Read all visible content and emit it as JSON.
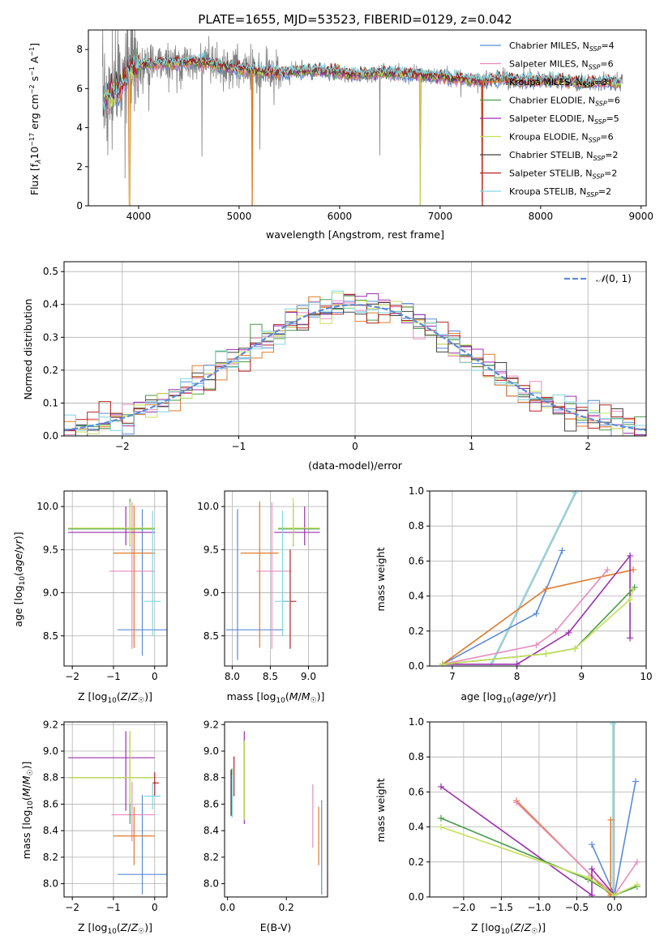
{
  "figure": {
    "title": "PLATE=1655, MJD=53523, FIBERID=0129, z=0.042"
  },
  "models": [
    {
      "name": "Chabrier MILES, N$_{SSP}$=4",
      "label": "Chabrier MILES, N",
      "sub": "SSP",
      "tail": "=4",
      "color": "#5b8bd8"
    },
    {
      "name": "Salpeter MILES, N$_{SSP}$=6",
      "label": "Salpeter MILES, N",
      "sub": "SSP",
      "tail": "=6",
      "color": "#e98bbd"
    },
    {
      "name": "Kroupa MILES, N$_{SSP}$=3",
      "label": "Kroupa MILES, N",
      "sub": "SSP",
      "tail": "=3",
      "color": "#e07a2a"
    },
    {
      "name": "Chabrier ELODIE, N$_{SSP}$=6",
      "label": "Chabrier ELODIE, N",
      "sub": "SSP",
      "tail": "=6",
      "color": "#4a9a4a"
    },
    {
      "name": "Salpeter ELODIE, N$_{SSP}$=5",
      "label": "Salpeter ELODIE, N",
      "sub": "SSP",
      "tail": "=5",
      "color": "#9b2fae"
    },
    {
      "name": "Kroupa ELODIE, N$_{SSP}$=6",
      "label": "Kroupa ELODIE, N",
      "sub": "SSP",
      "tail": "=6",
      "color": "#c5e05a"
    },
    {
      "name": "Chabrier STELIB, N$_{SSP}$=2",
      "label": "Chabrier STELIB, N",
      "sub": "SSP",
      "tail": "=2",
      "color": "#444444"
    },
    {
      "name": "Salpeter STELIB, N$_{SSP}$=2",
      "label": "Salpeter STELIB, N",
      "sub": "SSP",
      "tail": "=2",
      "color": "#b22222"
    },
    {
      "name": "Kroupa STELIB, N$_{SSP}$=2",
      "label": "Kroupa STELIB, N",
      "sub": "SSP",
      "tail": "=2",
      "color": "#7fd6e0"
    }
  ],
  "chart_data": [
    {
      "id": "spectrum",
      "type": "line",
      "xlabel": "wavelength [Angstrom, rest frame]",
      "ylabel": "Flux [f_λ 10^-17 erg cm^-2 s^-1 A^-1]",
      "xlim": [
        3500,
        9050
      ],
      "ylim": [
        0,
        9
      ],
      "xticks": [
        4000,
        5000,
        6000,
        7000,
        8000,
        9000
      ],
      "yticks": [
        0,
        2,
        4,
        6,
        8
      ],
      "legend": "upper-right",
      "grid": false,
      "data_color": "#808080",
      "continuum": {
        "x": [
          3650,
          3700,
          3800,
          3900,
          4000,
          4200,
          4400,
          4600,
          4800,
          5000,
          5200,
          5400,
          5600,
          5800,
          6000,
          6200,
          6400,
          6600,
          6800,
          7000,
          7200,
          7400,
          7600,
          7800,
          8000,
          8200,
          8400,
          8600,
          8800
        ],
        "y": [
          5.5,
          5.6,
          5.9,
          6.8,
          7.2,
          7.3,
          7.3,
          7.4,
          7.2,
          7.0,
          6.9,
          6.8,
          6.9,
          6.9,
          6.8,
          6.7,
          6.8,
          6.8,
          6.7,
          6.6,
          6.5,
          6.4,
          6.5,
          6.4,
          6.4,
          6.4,
          6.3,
          6.3,
          6.3
        ]
      },
      "dips": [
        {
          "x": 3910,
          "y": 0.0
        },
        {
          "x": 5130,
          "y": 0.0
        },
        {
          "x": 6800,
          "y": 0.0
        },
        {
          "x": 7420,
          "y": 0.2
        }
      ]
    },
    {
      "id": "residuals",
      "type": "histogram",
      "xlabel": "(data-model)/error",
      "ylabel": "Normed distribution",
      "xlim": [
        -2.5,
        2.5
      ],
      "ylim": [
        0,
        0.53
      ],
      "xticks": [
        -2,
        -1,
        0,
        1,
        2
      ],
      "yticks": [
        0.0,
        0.1,
        0.2,
        0.3,
        0.4,
        0.5
      ],
      "grid": true,
      "legend": "upper-right",
      "reference": {
        "label": "N(0,1)",
        "color": "#5b8bd8"
      },
      "bin_width": 0.1
    },
    {
      "id": "age_vs_Z",
      "type": "errorbar",
      "xlabel": "Z [log10(Z/Z_sun)]",
      "ylabel": "age  [log10(age/yr)]",
      "xlim": [
        -2.2,
        0.3
      ],
      "ylim": [
        8.15,
        10.18
      ],
      "xticks": [
        -2,
        -1,
        0
      ],
      "yticks": [
        8.5,
        9.0,
        9.5,
        10.0
      ],
      "grid": true,
      "points": [
        {
          "m": 0,
          "x": -0.3,
          "xerr": [
            0.6,
            0.6
          ],
          "y": 8.57,
          "yerr": [
            0.3,
            1.4
          ]
        },
        {
          "m": 1,
          "x": -0.55,
          "xerr": [
            0.55,
            0.55
          ],
          "y": 9.25,
          "yerr": [
            0.9,
            0.8
          ]
        },
        {
          "m": 2,
          "x": -0.5,
          "xerr": [
            0.5,
            0.5
          ],
          "y": 9.46,
          "yerr": [
            1.1,
            0.55
          ]
        },
        {
          "m": 3,
          "x": -0.6,
          "xerr": [
            1.5,
            0.6
          ],
          "y": 9.74,
          "yerr": [
            0.2,
            0.35
          ]
        },
        {
          "m": 4,
          "x": -0.7,
          "xerr": [
            1.4,
            0.7
          ],
          "y": 9.7,
          "yerr": [
            0.15,
            0.3
          ]
        },
        {
          "m": 5,
          "x": -0.6,
          "xerr": [
            1.5,
            0.6
          ],
          "y": 9.75,
          "yerr": [
            0.2,
            0.3
          ]
        },
        {
          "m": 8,
          "x": -0.05,
          "xerr": [
            0.2,
            0.2
          ],
          "y": 8.9,
          "yerr": [
            0.4,
            1.05
          ]
        }
      ]
    },
    {
      "id": "age_vs_mass",
      "type": "errorbar",
      "xlabel": "mass [log10(M/M_sun)]",
      "ylabel": "",
      "xlim": [
        7.9,
        9.25
      ],
      "ylim": [
        8.15,
        10.18
      ],
      "xticks": [
        8.0,
        8.5,
        9.0
      ],
      "yticks": [
        8.5,
        9.0,
        9.5,
        10.0
      ],
      "grid": true,
      "points": [
        {
          "m": 0,
          "x": 8.07,
          "xerr": [
            0.15,
            0.6
          ],
          "y": 8.57,
          "yerr": [
            0.35,
            1.4
          ]
        },
        {
          "m": 1,
          "x": 8.52,
          "xerr": [
            0.2,
            0.25
          ],
          "y": 9.25,
          "yerr": [
            0.9,
            0.8
          ]
        },
        {
          "m": 2,
          "x": 8.36,
          "xerr": [
            0.25,
            0.25
          ],
          "y": 9.46,
          "yerr": [
            1.1,
            0.6
          ]
        },
        {
          "m": 3,
          "x": 8.8,
          "xerr": [
            0.2,
            0.35
          ],
          "y": 9.74,
          "yerr": [
            0.2,
            0.3
          ]
        },
        {
          "m": 4,
          "x": 8.95,
          "xerr": [
            0.4,
            0.2
          ],
          "y": 9.7,
          "yerr": [
            0.15,
            0.3
          ]
        },
        {
          "m": 5,
          "x": 8.8,
          "xerr": [
            0.2,
            0.35
          ],
          "y": 9.75,
          "yerr": [
            0.2,
            0.35
          ]
        },
        {
          "m": 7,
          "x": 8.76,
          "xerr": [
            0.1,
            0.08
          ],
          "y": 8.9,
          "yerr": [
            0.55,
            0.6
          ]
        },
        {
          "m": 8,
          "x": 8.66,
          "xerr": [
            0.1,
            0.1
          ],
          "y": 8.9,
          "yerr": [
            0.4,
            1.05
          ]
        }
      ]
    },
    {
      "id": "weight_vs_age",
      "type": "line",
      "xlabel": "age  [log10(age/yr)]",
      "ylabel": "mass weight",
      "xlim": [
        6.65,
        10
      ],
      "ylim": [
        0,
        1
      ],
      "xticks": [
        7,
        8,
        9,
        10
      ],
      "yticks": [
        0.0,
        0.2,
        0.4,
        0.6,
        0.8,
        1.0
      ],
      "grid": true,
      "series": [
        {
          "m": 8,
          "x": [
            7.6,
            8.9
          ],
          "y": [
            0.01,
            0.99
          ]
        },
        {
          "m": 0,
          "x": [
            6.85,
            8.3,
            8.7
          ],
          "y": [
            0.01,
            0.3,
            0.66
          ]
        },
        {
          "m": 2,
          "x": [
            6.85,
            8.45,
            9.8
          ],
          "y": [
            0.01,
            0.44,
            0.55
          ]
        },
        {
          "m": 1,
          "x": [
            6.85,
            8.3,
            8.6,
            9.4
          ],
          "y": [
            0.01,
            0.12,
            0.2,
            0.55
          ]
        },
        {
          "m": 4,
          "x": [
            6.85,
            8.0,
            8.8,
            9.75,
            9.75
          ],
          "y": [
            0.01,
            0.01,
            0.19,
            0.63,
            0.16
          ]
        },
        {
          "m": 3,
          "x": [
            6.85,
            8.45,
            8.9,
            9.82
          ],
          "y": [
            0.01,
            0.07,
            0.1,
            0.45
          ]
        },
        {
          "m": 5,
          "x": [
            6.85,
            8.45,
            8.9,
            9.75,
            9.8
          ],
          "y": [
            0.01,
            0.07,
            0.1,
            0.38,
            0.44
          ]
        }
      ]
    },
    {
      "id": "mass_vs_Z",
      "type": "errorbar",
      "xlabel": "Z [log10(Z/Z_sun)]",
      "ylabel": "mass [log10(M/M_sun)]",
      "xlim": [
        -2.2,
        0.3
      ],
      "ylim": [
        7.9,
        9.22
      ],
      "xticks": [
        -2,
        -1,
        0
      ],
      "yticks": [
        8.0,
        8.2,
        8.4,
        8.6,
        8.8,
        9.0,
        9.2
      ],
      "grid": true,
      "points": [
        {
          "m": 0,
          "x": -0.3,
          "xerr": [
            0.6,
            0.6
          ],
          "y": 8.07,
          "yerr": [
            0.15,
            0.6
          ]
        },
        {
          "m": 1,
          "x": -0.55,
          "xerr": [
            0.5,
            0.55
          ],
          "y": 8.52,
          "yerr": [
            0.2,
            0.25
          ]
        },
        {
          "m": 2,
          "x": -0.5,
          "xerr": [
            0.5,
            0.5
          ],
          "y": 8.36,
          "yerr": [
            0.22,
            0.22
          ]
        },
        {
          "m": 3,
          "x": -0.6,
          "xerr": [
            1.5,
            0.6
          ],
          "y": 8.8,
          "yerr": [
            0.35,
            0.35
          ]
        },
        {
          "m": 4,
          "x": -0.7,
          "xerr": [
            1.4,
            0.7
          ],
          "y": 8.95,
          "yerr": [
            0.4,
            0.2
          ]
        },
        {
          "m": 5,
          "x": -0.6,
          "xerr": [
            1.5,
            0.6
          ],
          "y": 8.8,
          "yerr": [
            0.2,
            0.35
          ]
        },
        {
          "m": 7,
          "x": 0.0,
          "xerr": [
            0.05,
            0.1
          ],
          "y": 8.76,
          "yerr": [
            0.1,
            0.08
          ]
        },
        {
          "m": 8,
          "x": -0.05,
          "xerr": [
            0.2,
            0.2
          ],
          "y": 8.66,
          "yerr": [
            0.1,
            0.1
          ]
        }
      ]
    },
    {
      "id": "mass_vs_ebv",
      "type": "errorbar",
      "xlabel": "E(B-V)",
      "ylabel": "",
      "xlim": [
        -0.01,
        0.34
      ],
      "ylim": [
        7.9,
        9.22
      ],
      "xticks": [
        0.0,
        0.2
      ],
      "yticks": [
        8.0,
        8.2,
        8.4,
        8.6,
        8.8,
        9.0,
        9.2
      ],
      "grid": false,
      "points": [
        {
          "m": 0,
          "x": 0.32,
          "y": 8.07,
          "yerr": [
            0.15,
            0.56
          ]
        },
        {
          "m": 1,
          "x": 0.29,
          "y": 8.52,
          "yerr": [
            0.25,
            0.23
          ]
        },
        {
          "m": 2,
          "x": 0.31,
          "y": 8.36,
          "yerr": [
            0.22,
            0.22
          ]
        },
        {
          "m": 3,
          "x": 0.015,
          "y": 8.7,
          "yerr": [
            0.18,
            0.17
          ]
        },
        {
          "m": 4,
          "x": 0.057,
          "y": 8.8,
          "yerr": [
            0.35,
            0.35
          ]
        },
        {
          "m": 5,
          "x": 0.058,
          "y": 8.78,
          "yerr": [
            0.3,
            0.3
          ]
        },
        {
          "m": 6,
          "x": 0.012,
          "y": 8.66,
          "yerr": [
            0.15,
            0.2
          ]
        },
        {
          "m": 7,
          "x": 0.022,
          "y": 8.76,
          "yerr": [
            0.1,
            0.2
          ]
        },
        {
          "m": 8,
          "x": 0.016,
          "y": 8.66,
          "yerr": [
            0.16,
            0.16
          ]
        }
      ]
    },
    {
      "id": "weight_vs_Z",
      "type": "line",
      "xlabel": "Z [log10(Z/Z_sun)]",
      "ylabel": "mass weight",
      "xlim": [
        -2.45,
        0.42
      ],
      "ylim": [
        0,
        1
      ],
      "xticks": [
        -2.0,
        -1.5,
        -1.0,
        -0.5,
        0.0
      ],
      "yticks": [
        0.0,
        0.2,
        0.4,
        0.6,
        0.8,
        1.0
      ],
      "grid": true,
      "series": [
        {
          "m": 8,
          "x": [
            -0.02,
            -0.02
          ],
          "y": [
            0.01,
            0.99
          ]
        },
        {
          "m": 0,
          "x": [
            -0.3,
            0.0,
            0.28
          ],
          "y": [
            0.3,
            0.01,
            0.66
          ]
        },
        {
          "m": 2,
          "x": [
            -1.3,
            -0.05,
            -0.05
          ],
          "y": [
            0.55,
            0.01,
            0.44
          ]
        },
        {
          "m": 1,
          "x": [
            -1.3,
            -0.3,
            0.0,
            0.3
          ],
          "y": [
            0.54,
            0.12,
            0.01,
            0.2
          ]
        },
        {
          "m": 4,
          "x": [
            -2.3,
            -0.3,
            -0.3,
            0.0
          ],
          "y": [
            0.63,
            0.01,
            0.16,
            0.01
          ]
        },
        {
          "m": 3,
          "x": [
            -2.3,
            -0.35,
            0.0,
            0.3
          ],
          "y": [
            0.45,
            0.1,
            0.01,
            0.06
          ]
        },
        {
          "m": 5,
          "x": [
            -2.3,
            -0.35,
            0.0,
            0.3
          ],
          "y": [
            0.4,
            0.11,
            0.01,
            0.07
          ]
        }
      ]
    }
  ]
}
